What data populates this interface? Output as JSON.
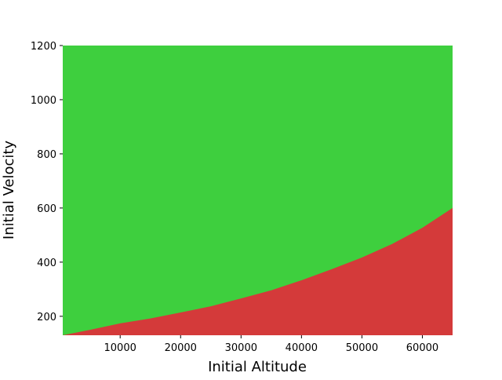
{
  "chart_data": {
    "type": "region",
    "x_label": "Initial Altitude",
    "y_label": "Initial Velocity",
    "x": [
      500,
      5000,
      10000,
      15000,
      20000,
      25000,
      30000,
      35000,
      40000,
      45000,
      50000,
      55000,
      60000,
      65000
    ],
    "series": [
      {
        "color": "#d43a3a",
        "values": [
          130,
          150,
          174,
          192,
          214,
          237,
          266,
          296,
          333,
          374,
          417,
          467,
          527,
          600
        ]
      }
    ],
    "above_color": "#3ecf3e",
    "xlim": [
      500,
      65000
    ],
    "xticks": [
      10000,
      20000,
      30000,
      40000,
      50000,
      60000
    ],
    "ylim": [
      130,
      1200
    ],
    "yticks": [
      200,
      400,
      600,
      800,
      1000,
      1200
    ]
  }
}
